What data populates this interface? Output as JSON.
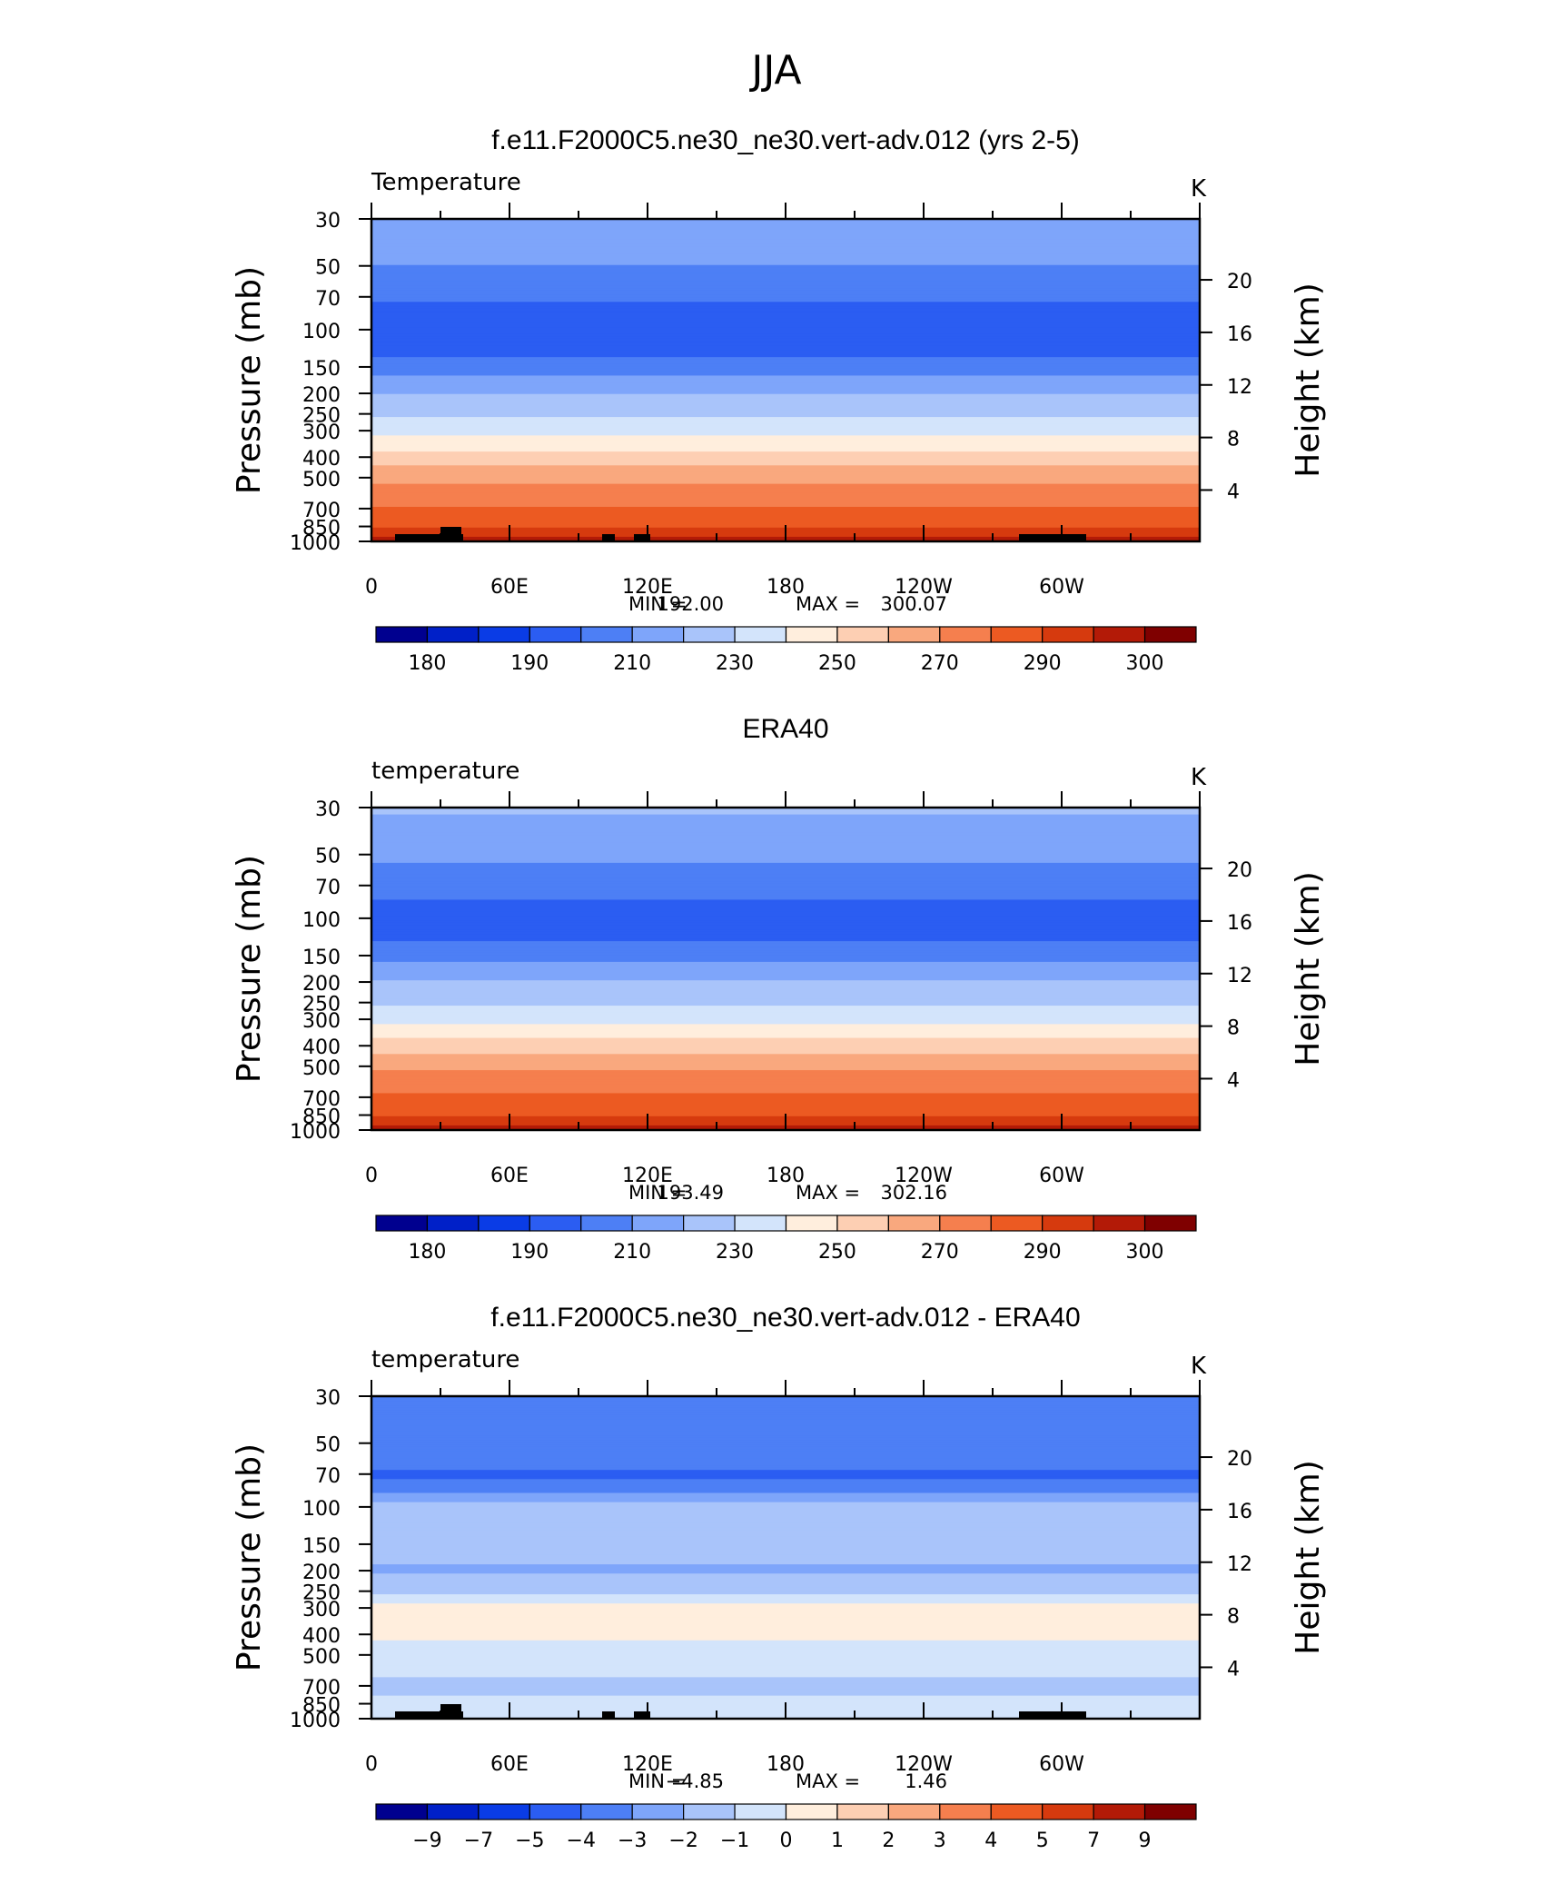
{
  "page_title": "JJA",
  "colors": {
    "temperature_palette": [
      "#00008f",
      "#0020c8",
      "#0a3ce6",
      "#2b5df2",
      "#4d7ff5",
      "#7ea5fa",
      "#a9c4fa",
      "#d3e4fb",
      "#ffeedd",
      "#fdcfb3",
      "#f9a87e",
      "#f57f4e",
      "#ec5a22",
      "#d63a0e",
      "#b31a07",
      "#7f0000"
    ],
    "difference_palette": [
      "#00008f",
      "#0020c8",
      "#0a3ce6",
      "#2b5df2",
      "#4d7ff5",
      "#7ea5fa",
      "#a9c4fa",
      "#d3e4fb",
      "#ffeedd",
      "#fdcfb3",
      "#f9a87e",
      "#f57f4e",
      "#ec5a22",
      "#d63a0e",
      "#b31a07",
      "#7f0000"
    ],
    "topography": "#000000"
  },
  "chart_data": [
    {
      "type": "heatmap",
      "panel_title": "f.e11.F2000C5.ne30_ne30.vert-adv.012 (yrs 2-5)",
      "variable_label": "Temperature",
      "units": "K",
      "ylabel": "Pressure (mb)",
      "ylabel_right": "Height (km)",
      "x_ticks": [
        "0",
        "60E",
        "120E",
        "180",
        "120W",
        "60W"
      ],
      "y_ticks": [
        "30",
        "50",
        "70",
        "100",
        "150",
        "200",
        "250",
        "300",
        "400",
        "500",
        "700",
        "850",
        "1000"
      ],
      "y_right_ticks": [
        "20",
        "16",
        "12",
        "8",
        "4"
      ],
      "min_label": "MIN =",
      "min_value": "192.00",
      "max_label": "MAX =",
      "max_value": "300.07",
      "colorbar_labels": [
        "180",
        "190",
        "210",
        "230",
        "250",
        "270",
        "290",
        "300"
      ],
      "profile_levels_mb": [
        30,
        40,
        50,
        62,
        70,
        85,
        100,
        120,
        150,
        175,
        200,
        250,
        300,
        350,
        400,
        450,
        500,
        600,
        700,
        800,
        850,
        925,
        1000
      ],
      "profile_values_K": [
        218,
        214,
        210,
        206,
        201,
        197,
        193,
        195,
        205,
        213,
        220,
        228,
        236,
        246,
        254,
        261,
        267,
        275,
        281,
        286,
        289,
        293,
        297
      ],
      "min": 192.0,
      "max": 300.07,
      "topography": true
    },
    {
      "type": "heatmap",
      "panel_title": "ERA40",
      "variable_label": "temperature",
      "units": "K",
      "ylabel": "Pressure (mb)",
      "ylabel_right": "Height (km)",
      "x_ticks": [
        "0",
        "60E",
        "120E",
        "180",
        "120W",
        "60W"
      ],
      "y_ticks": [
        "30",
        "50",
        "70",
        "100",
        "150",
        "200",
        "250",
        "300",
        "400",
        "500",
        "700",
        "850",
        "1000"
      ],
      "y_right_ticks": [
        "20",
        "16",
        "12",
        "8",
        "4"
      ],
      "min_label": "MIN =",
      "min_value": "193.49",
      "max_label": "MAX =",
      "max_value": "302.16",
      "colorbar_labels": [
        "180",
        "190",
        "210",
        "230",
        "250",
        "270",
        "290",
        "300"
      ],
      "profile_levels_mb": [
        30,
        40,
        50,
        62,
        70,
        85,
        100,
        120,
        150,
        175,
        200,
        250,
        300,
        350,
        400,
        450,
        500,
        600,
        700,
        800,
        850,
        925,
        1000
      ],
      "profile_values_K": [
        221,
        217,
        212,
        207,
        203,
        199,
        195,
        197,
        206,
        214,
        221,
        229,
        237,
        247,
        255,
        262,
        268,
        276,
        282,
        287,
        290,
        294,
        299
      ],
      "min": 193.49,
      "max": 302.16,
      "topography": false
    },
    {
      "type": "heatmap",
      "panel_title": "f.e11.F2000C5.ne30_ne30.vert-adv.012 - ERA40",
      "variable_label": "temperature",
      "units": "K",
      "ylabel": "Pressure (mb)",
      "ylabel_right": "Height (km)",
      "x_ticks": [
        "0",
        "60E",
        "120E",
        "180",
        "120W",
        "60W"
      ],
      "y_ticks": [
        "30",
        "50",
        "70",
        "100",
        "150",
        "200",
        "250",
        "300",
        "400",
        "500",
        "700",
        "850",
        "1000"
      ],
      "y_right_ticks": [
        "20",
        "16",
        "12",
        "8",
        "4"
      ],
      "min_label": "MIN =",
      "min_value": "−4.85",
      "max_label": "MAX =",
      "max_value": "1.46",
      "colorbar_labels": [
        "−9",
        "−7",
        "−5",
        "−4",
        "−3",
        "−2",
        "−1",
        "0",
        "1",
        "2",
        "3",
        "4",
        "5",
        "7",
        "9"
      ],
      "profile_levels_mb": [
        30,
        50,
        62,
        70,
        80,
        100,
        150,
        200,
        250,
        300,
        400,
        500,
        600,
        700,
        800,
        850,
        1000
      ],
      "profile_values_K": [
        -3.3,
        -3.2,
        -3.6,
        -4.2,
        -3.6,
        -1.5,
        -1.6,
        -2.1,
        -1.4,
        0.4,
        0.3,
        -0.6,
        -0.8,
        -1.4,
        -0.9,
        -0.6,
        -0.5
      ],
      "min": -4.85,
      "max": 1.46,
      "topography": true
    }
  ]
}
